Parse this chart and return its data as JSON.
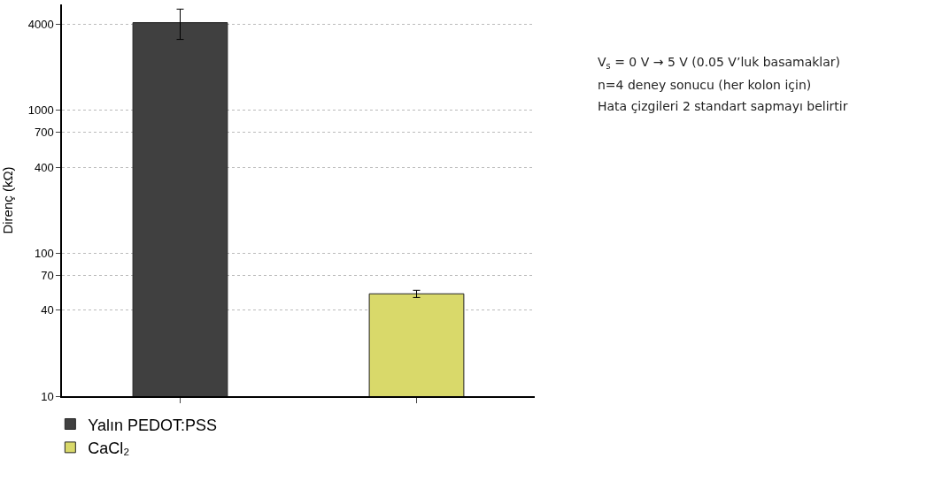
{
  "chart_data": {
    "type": "bar",
    "ylabel": "Direnç (kΩ)",
    "categories": [
      null,
      null
    ],
    "series": [
      {
        "name": "Yalın PEDOT:PSS",
        "color": "#404040",
        "values": [
          4100,
          null
        ],
        "errors": [
          [
            3130,
            5100
          ],
          null
        ]
      },
      {
        "name": "CaCl₂",
        "color": "#d9d96a",
        "values": [
          null,
          52
        ],
        "errors": [
          null,
          [
            49,
            55
          ]
        ]
      }
    ],
    "log": true,
    "ylim": [
      10,
      5500
    ],
    "yticks": [
      10,
      40,
      70,
      100,
      400,
      700,
      1000,
      4000
    ],
    "grid": "y",
    "legend": "bottom left",
    "annotations": [
      "V$_{s}$ = 0 V → 5 V (0.05 V’luk basamaklar)",
      "n=4 deney sonucu (her kolon için)",
      "Hata çizgileri 2 standart sapmayı belirtir"
    ]
  }
}
